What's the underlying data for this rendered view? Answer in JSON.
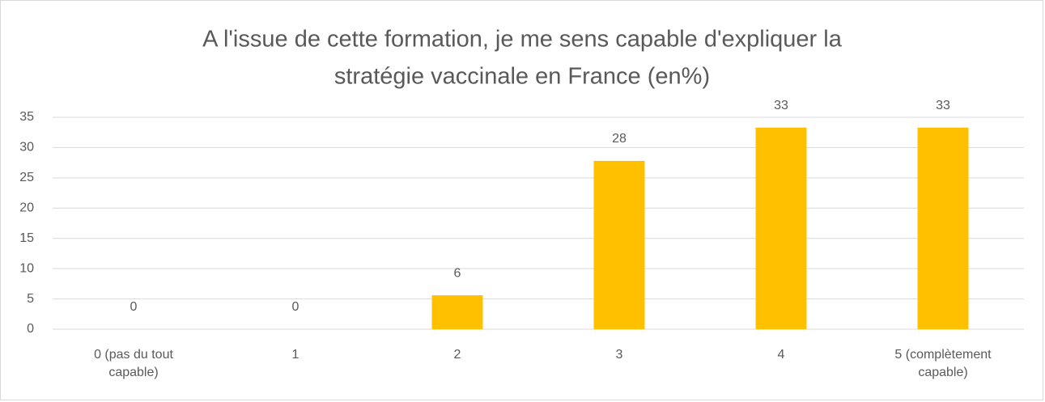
{
  "chart_data": {
    "type": "bar",
    "title": [
      "A l'issue de cette formation, je me sens capable d'expliquer la",
      "stratégie vaccinale en France (en%)"
    ],
    "categories": [
      "0 (pas du tout capable)",
      "1",
      "2",
      "3",
      "4",
      "5 (complètement capable)"
    ],
    "values": [
      0,
      0,
      5.6,
      27.8,
      33.3,
      33.3
    ],
    "value_labels": [
      "0",
      "0",
      "6",
      "28",
      "33",
      "33"
    ],
    "color": "#ffc000",
    "ylim": [
      0,
      35
    ],
    "yticks": [
      0,
      5,
      10,
      15,
      20,
      25,
      30,
      35
    ],
    "grid": true
  }
}
